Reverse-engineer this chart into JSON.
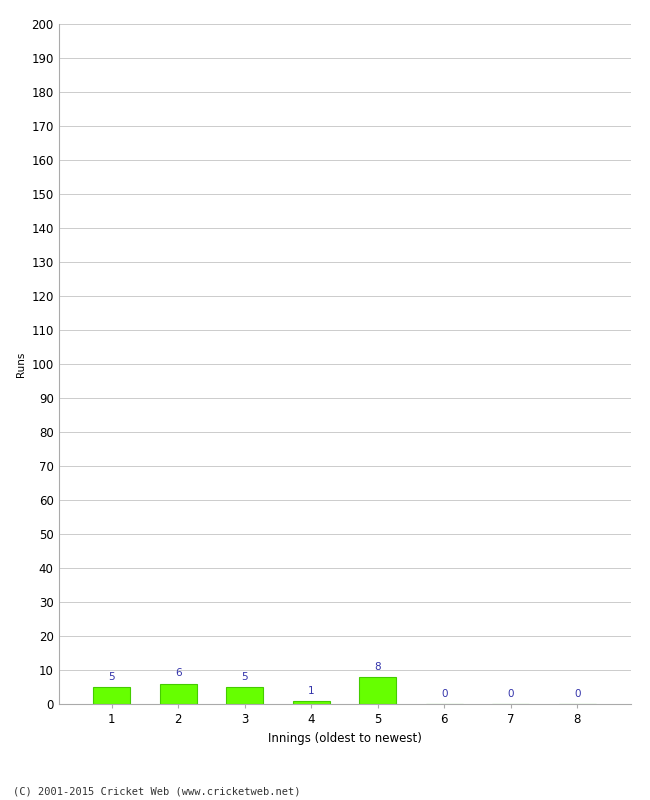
{
  "innings": [
    1,
    2,
    3,
    4,
    5,
    6,
    7,
    8
  ],
  "runs": [
    5,
    6,
    5,
    1,
    8,
    0,
    0,
    0
  ],
  "bar_color": "#66ff00",
  "bar_edge_color": "#44cc00",
  "label_color": "#3333aa",
  "ylabel": "Runs",
  "xlabel": "Innings (oldest to newest)",
  "ylim": [
    0,
    200
  ],
  "ytick_step": 10,
  "background_color": "#ffffff",
  "grid_color": "#cccccc",
  "footer": "(C) 2001-2015 Cricket Web (www.cricketweb.net)",
  "label_fontsize": 7.5,
  "axis_fontsize": 8.5,
  "ylabel_fontsize": 7.5,
  "footer_fontsize": 7.5
}
